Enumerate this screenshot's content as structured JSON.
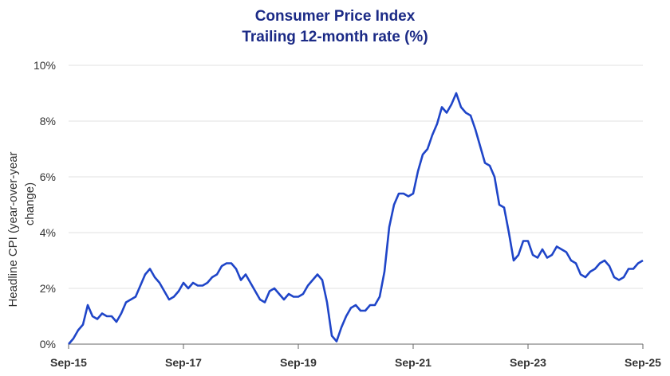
{
  "chart_data": {
    "type": "line",
    "title": "Consumer Price Index",
    "subtitle": "Trailing 12-month rate (%)",
    "ylabel_line1": "Headline CPI (year-over-year",
    "ylabel_line2": "change)",
    "xlabel": "",
    "x_start": "2015-09",
    "x_end": "2025-09",
    "x_ticks": [
      "Sep-15",
      "Sep-17",
      "Sep-19",
      "Sep-21",
      "Sep-23",
      "Sep-25"
    ],
    "y_ticks": [
      "0%",
      "2%",
      "4%",
      "6%",
      "8%",
      "10%"
    ],
    "ylim": [
      0,
      10
    ],
    "grid": true,
    "line_color": "#1f45c8",
    "title_color": "#1b2a86",
    "series": [
      {
        "values": [
          0.0,
          0.2,
          0.5,
          0.7,
          1.4,
          1.0,
          0.9,
          1.1,
          1.0,
          1.0,
          0.8,
          1.1,
          1.5,
          1.6,
          1.7,
          2.1,
          2.5,
          2.7,
          2.4,
          2.2,
          1.9,
          1.6,
          1.7,
          1.9,
          2.2,
          2.0,
          2.2,
          2.1,
          2.1,
          2.2,
          2.4,
          2.5,
          2.8,
          2.9,
          2.9,
          2.7,
          2.3,
          2.5,
          2.2,
          1.9,
          1.6,
          1.5,
          1.9,
          2.0,
          1.8,
          1.6,
          1.8,
          1.7,
          1.7,
          1.8,
          2.1,
          2.3,
          2.5,
          2.3,
          1.5,
          0.3,
          0.1,
          0.6,
          1.0,
          1.3,
          1.4,
          1.2,
          1.2,
          1.4,
          1.4,
          1.7,
          2.6,
          4.2,
          5.0,
          5.4,
          5.4,
          5.3,
          5.4,
          6.2,
          6.8,
          7.0,
          7.5,
          7.9,
          8.5,
          8.3,
          8.6,
          9.0,
          8.5,
          8.3,
          8.2,
          7.7,
          7.1,
          6.5,
          6.4,
          6.0,
          5.0,
          4.9,
          4.0,
          3.0,
          3.2,
          3.7,
          3.7,
          3.2,
          3.1,
          3.4,
          3.1,
          3.2,
          3.5,
          3.4,
          3.3,
          3.0,
          2.9,
          2.5,
          2.4,
          2.6,
          2.7,
          2.9,
          3.0,
          2.8,
          2.4,
          2.3,
          2.4,
          2.7,
          2.7,
          2.9,
          3.0
        ]
      }
    ]
  }
}
